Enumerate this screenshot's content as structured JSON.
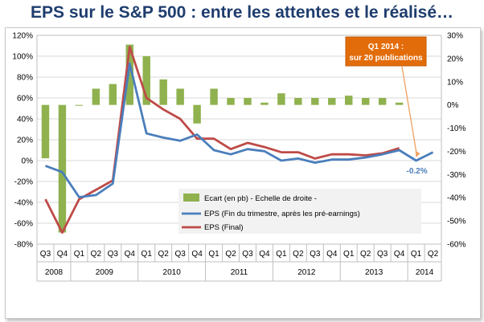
{
  "title": "EPS sur le S&P 500 : entre les attentes et le réalisé…",
  "chart_data": {
    "type": "bar+line",
    "categories": [
      "Q3",
      "Q4",
      "Q1",
      "Q2",
      "Q3",
      "Q4",
      "Q1",
      "Q2",
      "Q3",
      "Q4",
      "Q1",
      "Q2",
      "Q3",
      "Q4",
      "Q1",
      "Q2",
      "Q3",
      "Q4",
      "Q1",
      "Q2",
      "Q3",
      "Q4",
      "Q1",
      "Q2"
    ],
    "years": [
      {
        "label": "2008",
        "span": 2
      },
      {
        "label": "2009",
        "span": 4
      },
      {
        "label": "2010",
        "span": 4
      },
      {
        "label": "2011",
        "span": 4
      },
      {
        "label": "2012",
        "span": 4
      },
      {
        "label": "2013",
        "span": 4
      },
      {
        "label": "2014",
        "span": 2
      }
    ],
    "left_axis": {
      "ticks": [
        "-80%",
        "-60%",
        "-40%",
        "-20%",
        "0%",
        "20%",
        "40%",
        "60%",
        "80%",
        "100%",
        "120%"
      ],
      "ylim": [
        -80,
        120
      ]
    },
    "right_axis": {
      "ticks": [
        "-60%",
        "-50%",
        "-40%",
        "-30%",
        "-20%",
        "-10%",
        "0%",
        "10%",
        "20%",
        "30%"
      ],
      "ylim": [
        -60,
        30
      ]
    },
    "series": [
      {
        "name": "Ecart (en pb) - Echelle de droite -",
        "type": "bar",
        "axis": "right",
        "color": "#8fb24f",
        "values": [
          -23,
          -55,
          0,
          7,
          9,
          26,
          21,
          11,
          7,
          -8,
          7,
          3,
          3,
          1,
          5,
          3,
          3,
          3,
          4,
          3,
          3,
          1,
          null,
          null
        ]
      },
      {
        "name": "EPS (Fin du trimestre, après les pré-earnings)",
        "type": "line",
        "axis": "left",
        "color": "#4a7ebb",
        "values": [
          -5,
          -11,
          -35,
          -33,
          -22,
          93,
          26,
          22,
          19,
          25,
          10,
          6,
          11,
          9,
          0,
          2,
          -2,
          1,
          1,
          3,
          6,
          10,
          0,
          8
        ]
      },
      {
        "name": "EPS (Final)",
        "type": "line",
        "axis": "left",
        "color": "#be4b48",
        "values": [
          -37,
          -69,
          -37,
          -28,
          -19,
          109,
          60,
          49,
          40,
          21,
          21,
          11,
          17,
          13,
          8,
          8,
          2,
          6,
          6,
          5,
          7,
          12,
          null,
          null
        ]
      }
    ],
    "annotations": {
      "callout_line1": "Q1 2014 :",
      "callout_line2": "sur 20 publications",
      "point_label": "-0.2%"
    }
  }
}
